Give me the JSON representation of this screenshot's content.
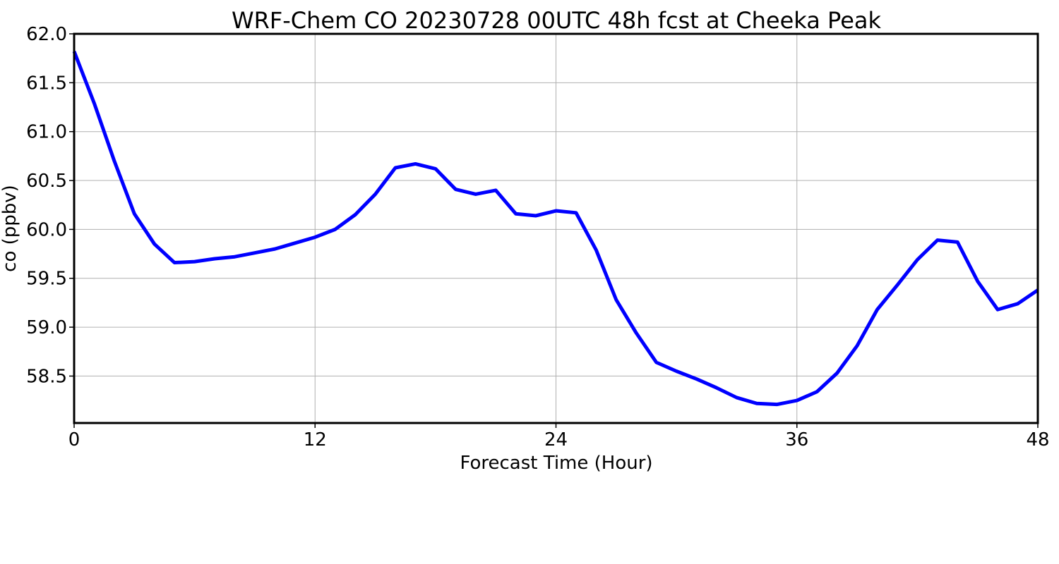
{
  "chart_data": {
    "type": "line",
    "title": "WRF-Chem CO  20230728 00UTC 48h fcst at Cheeka Peak",
    "xlabel": "Forecast Time (Hour)",
    "ylabel": "co  (ppbv)",
    "xlim": [
      0,
      48
    ],
    "ylim": [
      58.02,
      62.0
    ],
    "xticks": [
      0,
      12,
      24,
      36,
      48
    ],
    "xtick_labels": [
      "0",
      "12",
      "24",
      "36",
      "48"
    ],
    "yticks": [
      58.5,
      59.0,
      59.5,
      60.0,
      60.5,
      61.0,
      61.5,
      62.0
    ],
    "ytick_labels": [
      "58.5",
      "59.0",
      "59.5",
      "60.0",
      "60.5",
      "61.0",
      "61.5",
      "62.0"
    ],
    "grid": true,
    "line_color": "#0000ff",
    "series": [
      {
        "x": [
          0,
          1,
          2,
          3,
          4,
          5,
          6,
          7,
          8,
          9,
          10,
          11,
          12,
          13,
          14,
          15,
          16,
          17,
          18,
          19,
          20,
          21,
          22,
          23,
          24,
          25,
          26,
          27,
          28,
          29,
          30,
          31,
          32,
          33,
          34,
          35,
          36,
          37,
          38,
          39,
          40,
          41,
          42,
          43,
          44,
          45,
          46,
          47,
          48
        ],
        "values": [
          61.82,
          61.29,
          60.7,
          60.16,
          59.85,
          59.66,
          59.67,
          59.7,
          59.72,
          59.76,
          59.8,
          59.86,
          59.92,
          60.0,
          60.15,
          60.36,
          60.63,
          60.67,
          60.62,
          60.41,
          60.36,
          60.4,
          60.16,
          60.14,
          60.19,
          60.17,
          59.79,
          59.28,
          58.94,
          58.64,
          58.55,
          58.47,
          58.38,
          58.28,
          58.22,
          58.21,
          58.25,
          58.34,
          58.53,
          58.81,
          59.18,
          59.43,
          59.69,
          59.89,
          59.87,
          59.47,
          59.18,
          59.24,
          59.38
        ]
      }
    ]
  }
}
